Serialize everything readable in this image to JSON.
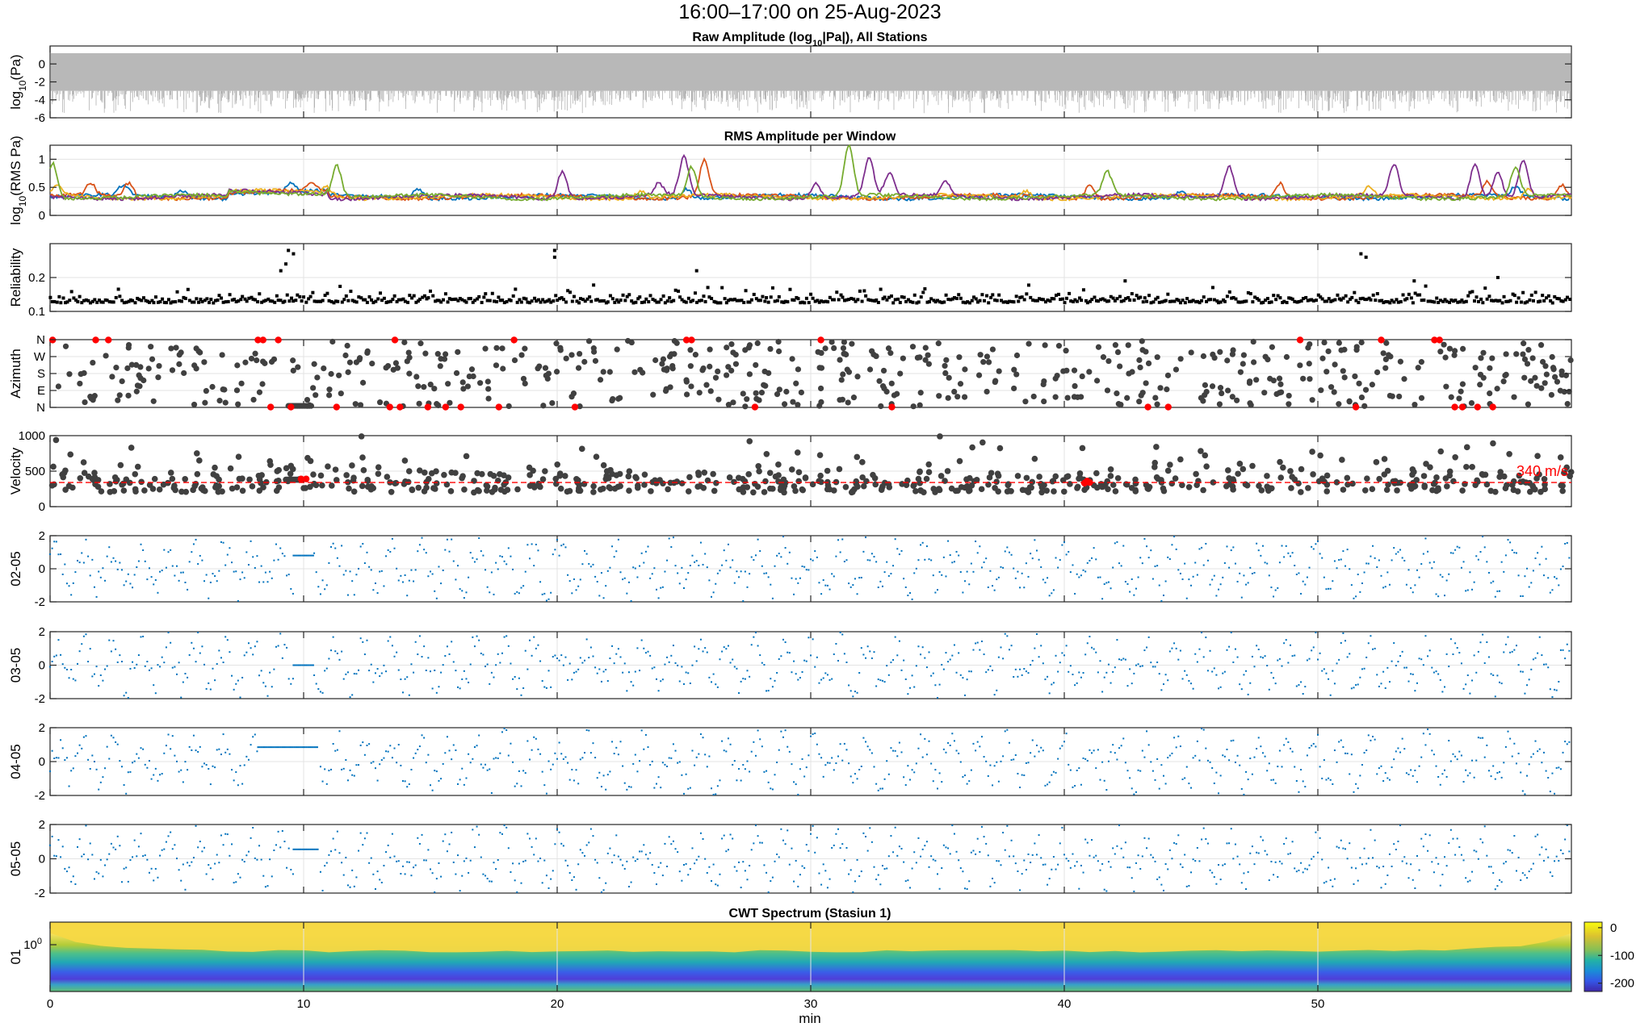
{
  "figure_title": "16:00–17:00 on 25-Aug-2023",
  "x_axis": {
    "label": "min",
    "ticks": [
      0,
      10,
      20,
      30,
      40,
      50
    ],
    "range": [
      0,
      60
    ]
  },
  "chart_data": [
    {
      "id": "raw",
      "type": "line",
      "title": "Raw Amplitude (log10|Pa|), All Stations",
      "title_parts": [
        "Raw  Amplitude  (log",
        "10",
        "|Pa|),  All  Stations"
      ],
      "ylabel_parts": [
        "log",
        "10",
        "(Pa)"
      ],
      "ylim": [
        -6,
        2
      ],
      "yticks": [
        -6,
        -4,
        -2,
        0
      ],
      "color": "#b3b3b3",
      "band": {
        "upper": 1.2,
        "lower_dense": -3.0,
        "lower_spikes": -5.5
      }
    },
    {
      "id": "rms",
      "type": "line",
      "title": "RMS Amplitude per Window",
      "ylabel_parts": [
        "log",
        "10",
        "(RMS  Pa)"
      ],
      "ylim": [
        0,
        1.25
      ],
      "yticks": [
        0,
        0.5,
        1
      ],
      "baseline": 0.33,
      "series": [
        {
          "color": "#0072BD",
          "peaks": [
            [
              2.9,
              0.52
            ],
            [
              5.2,
              0.46
            ],
            [
              9.5,
              0.48
            ],
            [
              14.5,
              0.5
            ],
            [
              25.1,
              0.5
            ],
            [
              44.6,
              0.42
            ],
            [
              57.8,
              0.5
            ]
          ]
        },
        {
          "color": "#D95319",
          "peaks": [
            [
              1.6,
              0.55
            ],
            [
              3.1,
              0.58
            ],
            [
              10.3,
              0.5
            ],
            [
              25.8,
              0.98
            ],
            [
              41.0,
              0.55
            ],
            [
              48.5,
              0.58
            ],
            [
              56.7,
              0.6
            ],
            [
              59.6,
              0.58
            ]
          ]
        },
        {
          "color": "#EDB120",
          "peaks": [
            [
              0.3,
              0.5
            ],
            [
              11.0,
              0.47
            ],
            [
              23.3,
              0.45
            ],
            [
              38.5,
              0.45
            ],
            [
              52.0,
              0.48
            ],
            [
              58.3,
              0.5
            ]
          ]
        },
        {
          "color": "#7E2F8E",
          "peaks": [
            [
              20.2,
              0.8
            ],
            [
              24.0,
              0.55
            ],
            [
              25.0,
              1.02
            ],
            [
              30.2,
              0.6
            ],
            [
              32.3,
              1.0
            ],
            [
              33.1,
              0.72
            ],
            [
              35.3,
              0.6
            ],
            [
              46.5,
              0.9
            ],
            [
              53.0,
              0.9
            ],
            [
              56.2,
              0.95
            ],
            [
              57.1,
              0.78
            ],
            [
              58.1,
              1.0
            ]
          ]
        },
        {
          "color": "#77AC30",
          "peaks": [
            [
              0.1,
              0.95
            ],
            [
              11.3,
              0.92
            ],
            [
              25.3,
              0.85
            ],
            [
              31.5,
              1.22
            ],
            [
              41.7,
              0.75
            ],
            [
              57.8,
              0.85
            ]
          ]
        }
      ]
    },
    {
      "id": "reliability",
      "type": "scatter",
      "ylabel": "Reliability",
      "ylim": [
        0.1,
        0.3
      ],
      "yticks": [
        0.1,
        0.2
      ],
      "color": "#000000",
      "base": 0.13,
      "highlights": [
        [
          9.4,
          0.28
        ],
        [
          9.6,
          0.27
        ],
        [
          9.1,
          0.22
        ],
        [
          9.3,
          0.24
        ],
        [
          19.9,
          0.28
        ],
        [
          19.9,
          0.26
        ],
        [
          25.5,
          0.22
        ],
        [
          51.7,
          0.27
        ],
        [
          51.9,
          0.26
        ],
        [
          42.4,
          0.19
        ],
        [
          53.8,
          0.19
        ],
        [
          57.1,
          0.2
        ]
      ]
    },
    {
      "id": "azimuth",
      "type": "scatter",
      "ylabel": "Azimuth",
      "ytick_labels": [
        "N",
        "E",
        "S",
        "W",
        "N"
      ],
      "ylim": [
        0,
        360
      ],
      "color": "#404040",
      "red_color": "#ff0000",
      "red_points": [
        [
          0.1,
          360
        ],
        [
          1.8,
          360
        ],
        [
          2.3,
          360
        ],
        [
          8.2,
          360
        ],
        [
          8.4,
          360
        ],
        [
          9.0,
          360
        ],
        [
          13.6,
          360
        ],
        [
          18.3,
          360
        ],
        [
          25.1,
          360
        ],
        [
          25.3,
          360
        ],
        [
          30.4,
          360
        ],
        [
          49.3,
          360
        ],
        [
          52.5,
          360
        ],
        [
          54.6,
          360
        ],
        [
          54.8,
          360
        ],
        [
          8.7,
          5
        ],
        [
          9.5,
          5
        ],
        [
          11.3,
          5
        ],
        [
          13.4,
          5
        ],
        [
          13.8,
          5
        ],
        [
          14.9,
          5
        ],
        [
          15.6,
          5
        ],
        [
          16.2,
          5
        ],
        [
          17.7,
          5
        ],
        [
          20.7,
          5
        ],
        [
          27.8,
          5
        ],
        [
          33.2,
          5
        ],
        [
          43.3,
          5
        ],
        [
          44.1,
          5
        ],
        [
          51.5,
          5
        ],
        [
          55.4,
          5
        ],
        [
          55.7,
          5
        ],
        [
          56.3,
          5
        ],
        [
          56.9,
          5
        ]
      ]
    },
    {
      "id": "velocity",
      "type": "scatter",
      "ylabel": "Velocity",
      "ylim": [
        0,
        1000
      ],
      "yticks": [
        0,
        500,
        1000
      ],
      "color": "#404040",
      "reference_line": {
        "value": 340,
        "label": "340 m/s",
        "color": "#ff0000"
      },
      "red_cluster": [
        [
          40.8,
          330
        ],
        [
          40.9,
          360
        ],
        [
          41.0,
          340
        ],
        [
          9.9,
          390
        ],
        [
          10.1,
          390
        ]
      ]
    },
    {
      "id": "p02",
      "type": "scatter",
      "ylabel": "02-05",
      "ylim": [
        -2,
        2
      ],
      "yticks": [
        -2,
        0,
        2
      ],
      "color": "#0072BD",
      "flat": {
        "from": 9.6,
        "to": 10.4,
        "value": 0.8
      }
    },
    {
      "id": "p03",
      "type": "scatter",
      "ylabel": "03-05",
      "ylim": [
        -2,
        2
      ],
      "yticks": [
        -2,
        0,
        2
      ],
      "color": "#0072BD",
      "flat": {
        "from": 9.6,
        "to": 10.4,
        "value": 0.0
      }
    },
    {
      "id": "p04",
      "type": "scatter",
      "ylabel": "04-05",
      "ylim": [
        -2,
        2
      ],
      "yticks": [
        -2,
        0,
        2
      ],
      "color": "#0072BD",
      "flat": {
        "from": 8.2,
        "to": 10.6,
        "value": 0.85
      }
    },
    {
      "id": "p05",
      "type": "scatter",
      "ylabel": "05-05",
      "ylim": [
        -2,
        2
      ],
      "yticks": [
        -2,
        0,
        2
      ],
      "color": "#0072BD",
      "flat": {
        "from": 9.6,
        "to": 10.6,
        "value": 0.55
      }
    },
    {
      "id": "cwt",
      "type": "heatmap",
      "title": "CWT Spectrum (Stasiun 1)",
      "ylabel": "01",
      "ytick_parts": [
        "10",
        "0"
      ],
      "colorbar": {
        "ticks": [
          0,
          -100,
          -200
        ],
        "range": [
          -230,
          20
        ]
      }
    }
  ]
}
